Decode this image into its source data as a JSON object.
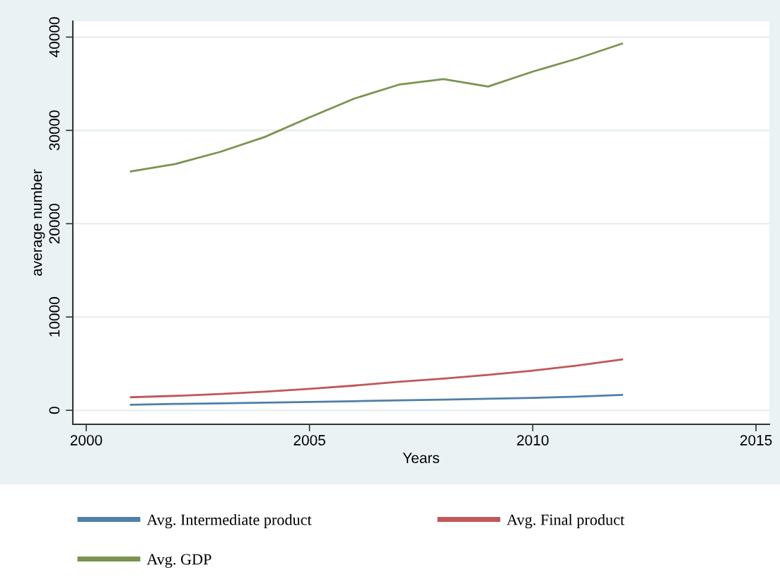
{
  "chart_data": {
    "type": "line",
    "xlabel": "Years",
    "ylabel": "average number",
    "x": [
      2001,
      2002,
      2003,
      2004,
      2005,
      2006,
      2007,
      2008,
      2009,
      2010,
      2011,
      2012
    ],
    "series": [
      {
        "name": "Avg. Intermediate product",
        "color": "#4f7fa8",
        "values": [
          600,
          680,
          750,
          820,
          900,
          980,
          1060,
          1140,
          1230,
          1330,
          1460,
          1650
        ]
      },
      {
        "name": "Avg. Final product",
        "color": "#c0585a",
        "values": [
          1400,
          1550,
          1750,
          2000,
          2300,
          2650,
          3050,
          3400,
          3800,
          4250,
          4800,
          5450
        ]
      },
      {
        "name": "Avg. GDP",
        "color": "#7a9450",
        "values": [
          25600,
          26400,
          27700,
          29300,
          31400,
          33400,
          34900,
          35500,
          34700,
          36300,
          37700,
          39300
        ]
      }
    ],
    "xlim": [
      1999.7,
      2015.3
    ],
    "xticks": [
      2000,
      2005,
      2010,
      2015
    ],
    "ylim": [
      -1500,
      41700
    ],
    "yticks": [
      0,
      10000,
      20000,
      30000,
      40000
    ],
    "grid": "y",
    "legend": "bottom",
    "marker": "none",
    "line_style": "solid"
  }
}
